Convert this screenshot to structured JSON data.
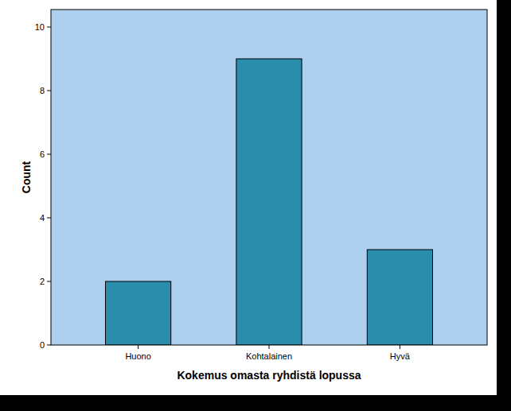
{
  "chart_data": {
    "type": "bar",
    "x_label": "Kokemus omasta ryhdistä lopussa",
    "y_label": "Count",
    "categories": [
      "Huono",
      "Kohtalainen",
      "Hyvä"
    ],
    "values": [
      2,
      9,
      3
    ],
    "color": "#2a8dab",
    "ylim": [
      0,
      10.55
    ],
    "yticks": [
      0,
      2,
      4,
      6,
      8,
      10
    ],
    "grid": false
  }
}
